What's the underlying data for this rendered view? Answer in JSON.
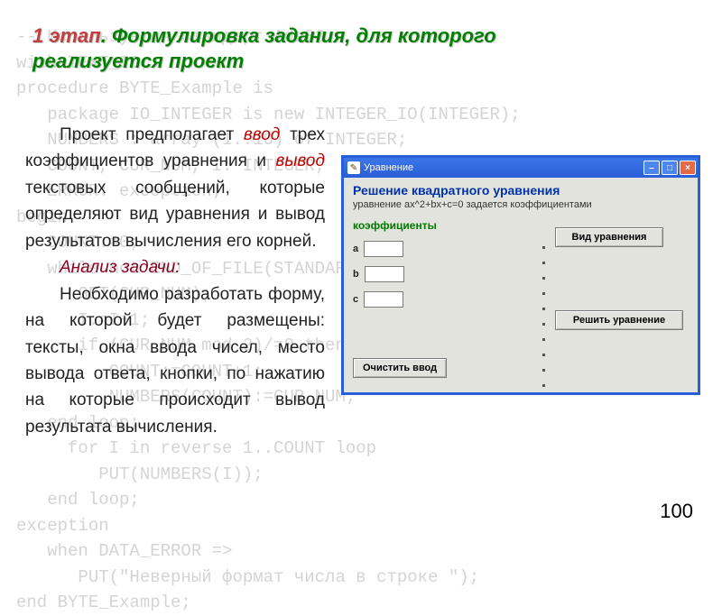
{
  "background_code": "-- Используется стандарт Ada83\nwith TEXT_IO;\nprocedure BYTE_Example is\n   package IO_INTEGER is new INTEGER_IO(INTEGER);\n   NUMBERS : array (1..10) of INTEGER;\n   COUNT, CUR_NUM, I: INTEGER;\n   ERROR: exception;\nbegin\n   COUNT:=0;\n   while not END_OF_FILE(STANDARD_INPUT) loop\n      GET(CUR_NUM);\n      I:=I+1;\n      if (CUR_NUM mod 2)/=0 then\n         COUNT:=COUNT+1;\n         NUMBERS(COUNT):=CUR_NUM;\n   end loop;\n     for I in reverse 1..COUNT loop\n        PUT(NUMBERS(I));\n   end loop;\nexception\n   when DATA_ERROR =>\n      PUT(\"Неверный формат числа в строке \");\nend BYTE_Example;",
  "title": {
    "stage": "1 этап",
    "sep": ". ",
    "rest": "Формулировка задания, для которого реализуется проект"
  },
  "paragraphs": {
    "p1a": "Проект предполагает ",
    "p1_em1": "ввод",
    "p1b": " трех коэффициентов уравнения и ",
    "p1_em2": "вывод",
    "p1c": " текстовых сообщений, которые определяют вид уравнения и вывод результатов вычисления его корней.",
    "an_label": "Анализ задачи:",
    "p2": "Необходимо разработать форму, на которой будет размещены: тексты, окна ввода чисел, место вывода ответа, кнопки, по нажатию на которые происходит вывод результата вычисления."
  },
  "page_number": "100",
  "window": {
    "titlebar_text": "Уравнение",
    "app_title": "Решение квадратного уравнения",
    "app_sub": "уравнение ax^2+bx+c=0  задается коэффициентами",
    "coef_section": "коэффициенты",
    "coef_a": "a",
    "coef_b": "b",
    "coef_c": "c",
    "btn_type": "Вид уравнения",
    "btn_solve": "Решить уравнение",
    "btn_clear": "Очистить ввод",
    "min_glyph": "–",
    "max_glyph": "□",
    "close_glyph": "×",
    "icon_glyph": "✎",
    "colors": {
      "titlebar_start": "#3b77e8",
      "titlebar_end": "#2a5dd8",
      "close_bg": "#e46a4a",
      "client_bg": "#e3e3de",
      "title_text": "#0033aa",
      "coef_label": "#007a00"
    }
  }
}
